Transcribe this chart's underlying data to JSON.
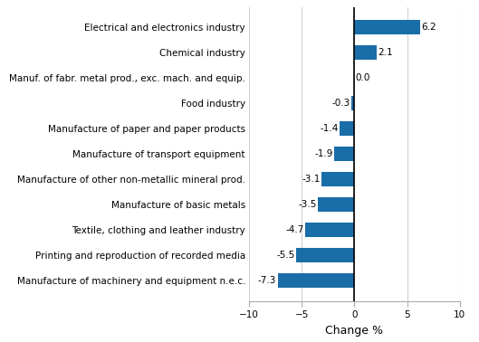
{
  "categories": [
    "Manufacture of machinery and equipment n.e.c.",
    "Printing and reproduction of recorded media",
    "Textile, clothing and leather industry",
    "Manufacture of basic metals",
    "Manufacture of other non-metallic mineral prod.",
    "Manufacture of transport equipment",
    "Manufacture of paper and paper products",
    "Food industry",
    "Manuf. of fabr. metal prod., exc. mach. and equip.",
    "Chemical industry",
    "Electrical and electronics industry"
  ],
  "values": [
    -7.3,
    -5.5,
    -4.7,
    -3.5,
    -3.1,
    -1.9,
    -1.4,
    -0.3,
    0.0,
    2.1,
    6.2
  ],
  "bar_color": "#1a6ea8",
  "xlabel": "Change %",
  "xlim": [
    -10,
    10
  ],
  "xticks": [
    -10,
    -5,
    0,
    5,
    10
  ],
  "value_labels": [
    "-7.3",
    "-5.5",
    "-4.7",
    "-3.5",
    "-3.1",
    "-1.9",
    "-1.4",
    "-0.3",
    "0.0",
    "2.1",
    "6.2"
  ],
  "background_color": "#ffffff",
  "label_fontsize": 7.5,
  "value_fontsize": 7.5,
  "xlabel_fontsize": 9,
  "bar_height": 0.55,
  "grid_color": "#d0d0d0"
}
